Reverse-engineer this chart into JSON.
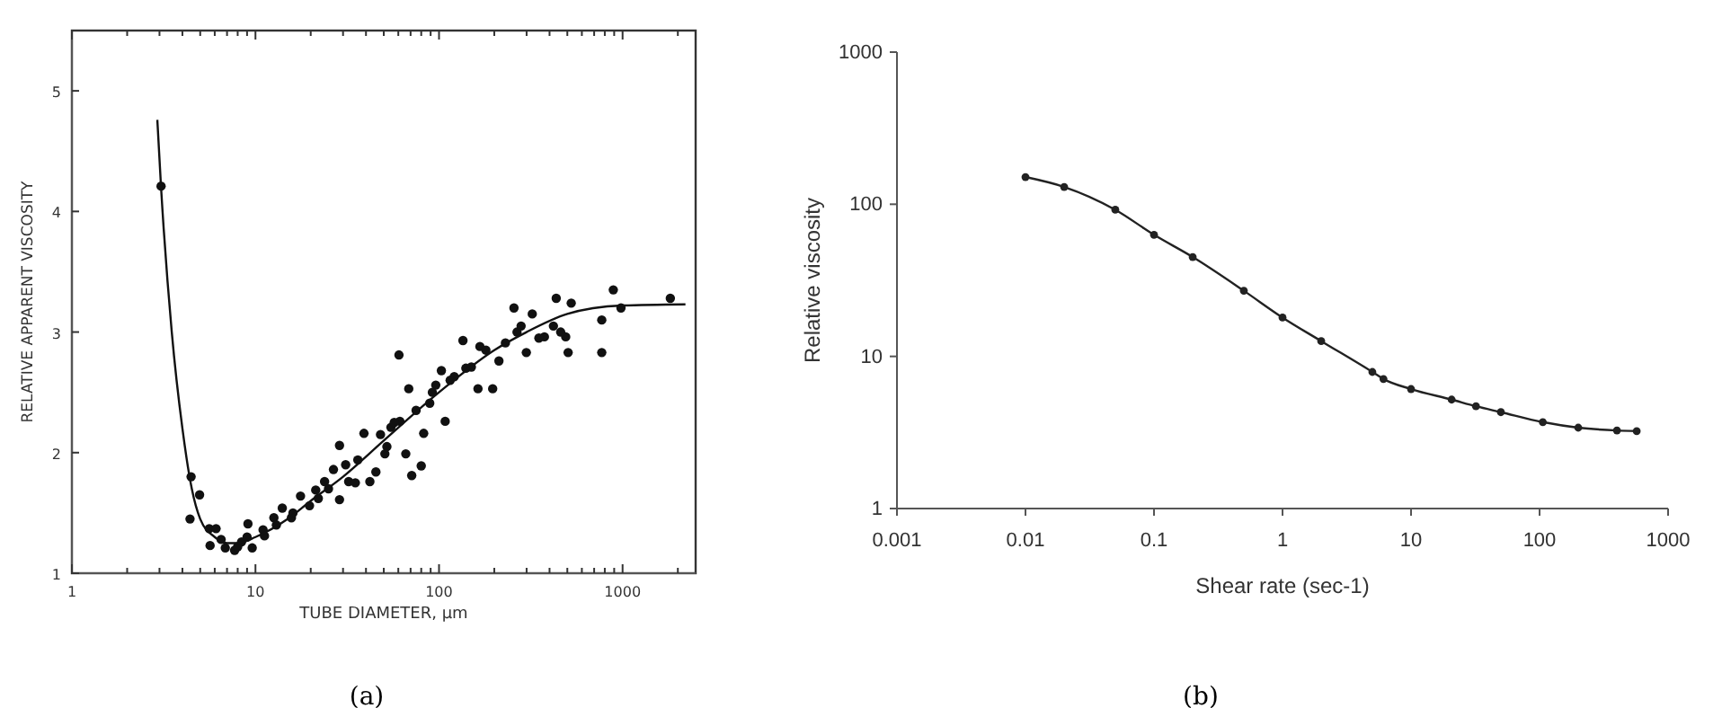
{
  "chart_data": [
    {
      "type": "scatter",
      "xlabel": "TUBE DIAMETER, μm",
      "ylabel": "RELATIVE APPARENT VISCOSITY",
      "log": "x",
      "xlim": [
        1,
        2500
      ],
      "ylim": [
        1,
        5.5
      ],
      "xticks": [
        1,
        {
          "value": 2,
          "label": null
        },
        {
          "value": 3,
          "label": null
        },
        {
          "value": 4,
          "label": null
        },
        {
          "value": 5,
          "label": null
        },
        {
          "value": 6,
          "label": null
        },
        {
          "value": 7,
          "label": null
        },
        {
          "value": 8,
          "label": null
        },
        {
          "value": 9,
          "label": null
        },
        10,
        {
          "value": 20,
          "label": null
        },
        {
          "value": 30,
          "label": null
        },
        {
          "value": 40,
          "label": null
        },
        {
          "value": 50,
          "label": null
        },
        {
          "value": 60,
          "label": null
        },
        {
          "value": 70,
          "label": null
        },
        {
          "value": 80,
          "label": null
        },
        {
          "value": 90,
          "label": null
        },
        100,
        {
          "value": 200,
          "label": null
        },
        {
          "value": 300,
          "label": null
        },
        {
          "value": 400,
          "label": null
        },
        {
          "value": 500,
          "label": null
        },
        {
          "value": 600,
          "label": null
        },
        {
          "value": 700,
          "label": null
        },
        {
          "value": 800,
          "label": null
        },
        {
          "value": 900,
          "label": null
        },
        1000,
        {
          "value": 2000,
          "label": null
        }
      ],
      "yticks": [
        1,
        2,
        3,
        4,
        5
      ],
      "grid": false,
      "annotations": [
        "(a)"
      ],
      "series": [
        {
          "color": "#111111",
          "marker": "circle",
          "x": [
            3.06,
            4.46,
            4.4,
            4.96,
            5.6,
            5.66,
            6.1,
            6.85,
            7.7,
            8.4,
            9.1,
            9.6,
            11.2,
            12.6,
            14,
            15.7,
            17.6,
            19.7,
            21.3,
            23.8,
            26.6,
            28.7,
            28.7,
            32.2,
            36.1,
            39,
            42,
            45.3,
            50.7,
            54.7,
            61.2,
            60.5,
            65.9,
            71,
            68.4,
            82.5,
            80,
            89,
            96,
            103,
            108,
            121,
            135,
            150,
            167,
            163,
            196,
            212,
            230,
            256,
            266,
            299,
            322,
            375,
            420,
            435,
            490,
            505,
            525,
            770,
            770,
            890,
            980,
            1820,
            6.5,
            8,
            9,
            11,
            13,
            16,
            22,
            25,
            31,
            35,
            48,
            52,
            57,
            75,
            92,
            115,
            140,
            180,
            280,
            350,
            460
          ],
          "values": [
            4.21,
            1.8,
            1.45,
            1.65,
            1.37,
            1.23,
            1.37,
            1.21,
            1.19,
            1.26,
            1.41,
            1.21,
            1.31,
            1.46,
            1.54,
            1.46,
            1.64,
            1.56,
            1.69,
            1.76,
            1.86,
            2.06,
            1.61,
            1.76,
            1.94,
            2.16,
            1.76,
            1.84,
            1.99,
            2.21,
            2.26,
            2.81,
            1.99,
            1.81,
            2.53,
            2.16,
            1.89,
            2.41,
            2.56,
            2.68,
            2.26,
            2.63,
            2.93,
            2.71,
            2.88,
            2.53,
            2.53,
            2.76,
            2.91,
            3.2,
            3,
            2.83,
            3.15,
            2.96,
            3.05,
            3.28,
            2.96,
            2.83,
            3.24,
            3.1,
            2.83,
            3.35,
            3.2,
            3.28,
            1.28,
            1.22,
            1.3,
            1.36,
            1.4,
            1.5,
            1.62,
            1.7,
            1.9,
            1.75,
            2.15,
            2.05,
            2.25,
            2.35,
            2.5,
            2.6,
            2.7,
            2.85,
            3.05,
            2.95,
            3
          ]
        },
        {
          "type": "line",
          "color": "#111111",
          "marker": "none",
          "x": [
            2.92,
            3.06,
            3.5,
            4,
            4.5,
            5,
            6,
            7,
            8,
            10,
            15,
            20,
            30,
            50,
            100,
            200,
            300,
            500,
            1000,
            2200
          ],
          "values": [
            4.76,
            4.2,
            3,
            2.2,
            1.7,
            1.45,
            1.3,
            1.25,
            1.25,
            1.3,
            1.45,
            1.6,
            1.8,
            2.1,
            2.5,
            2.85,
            3,
            3.15,
            3.22,
            3.23
          ]
        }
      ]
    },
    {
      "type": "line",
      "xlabel": "Shear rate (sec-1)",
      "ylabel": "Relative viscosity",
      "log": "xy",
      "xlim": [
        0.001,
        1000
      ],
      "ylim": [
        1,
        1000
      ],
      "xticks": [
        {
          "value": 0.001,
          "label": "0.001"
        },
        {
          "value": 0.01,
          "label": "0.01"
        },
        {
          "value": 0.1,
          "label": "0.1"
        },
        1,
        10,
        100,
        1000
      ],
      "yticks": [
        1,
        10,
        100,
        1000
      ],
      "grid": false,
      "marker": "circle",
      "annotations": [
        "(b)"
      ],
      "series": [
        {
          "color": "#222222",
          "x": [
            0.01,
            0.02,
            0.05,
            0.1,
            0.2,
            0.5,
            1,
            2,
            5,
            6.1,
            10,
            20.7,
            32,
            50,
            106,
            200,
            400,
            570
          ],
          "values": [
            151,
            130,
            92,
            63,
            45,
            27,
            18,
            12.6,
            7.9,
            7.1,
            6.1,
            5.2,
            4.7,
            4.3,
            3.7,
            3.4,
            3.26,
            3.23
          ]
        }
      ]
    }
  ]
}
